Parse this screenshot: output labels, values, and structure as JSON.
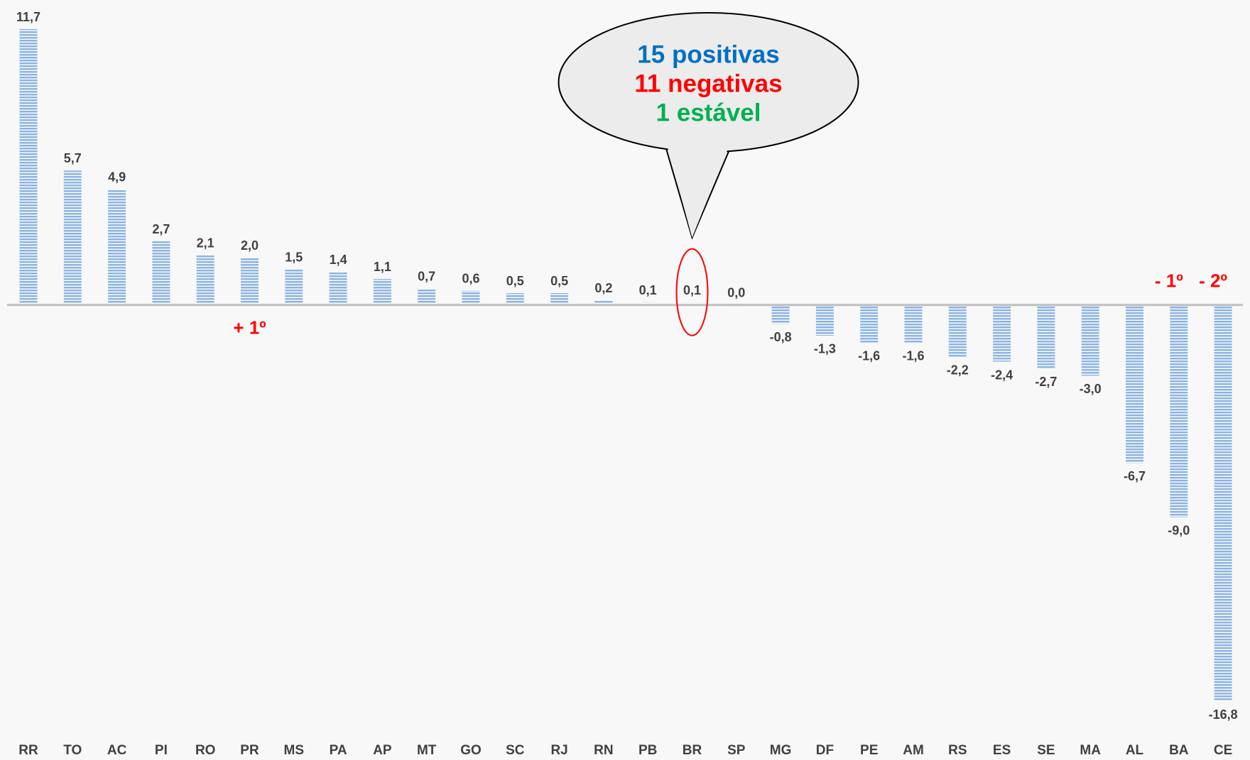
{
  "chart_data": {
    "type": "bar",
    "categories": [
      "RR",
      "TO",
      "AC",
      "PI",
      "RO",
      "PR",
      "MS",
      "PA",
      "AP",
      "MT",
      "GO",
      "SC",
      "RJ",
      "RN",
      "PB",
      "BR",
      "SP",
      "MG",
      "DF",
      "PE",
      "AM",
      "RS",
      "ES",
      "SE",
      "MA",
      "AL",
      "BA",
      "CE"
    ],
    "values": [
      11.7,
      5.7,
      4.9,
      2.7,
      2.1,
      2.0,
      1.5,
      1.4,
      1.1,
      0.7,
      0.6,
      0.5,
      0.5,
      0.2,
      0.1,
      0.1,
      0.0,
      -0.8,
      -1.3,
      -1.6,
      -1.6,
      -2.2,
      -2.4,
      -2.7,
      -3.0,
      -6.7,
      -9.0,
      -16.8
    ],
    "value_labels": [
      "11,7",
      "5,7",
      "4,9",
      "2,7",
      "2,1",
      "2,0",
      "1,5",
      "1,4",
      "1,1",
      "0,7",
      "0,6",
      "0,5",
      "0,5",
      "0,2",
      "0,1",
      "0,1",
      "0,0",
      "-0,8",
      "-1,3",
      "-1,6",
      "-1,6",
      "-2,2",
      "-2,4",
      "-2,7",
      "-3,0",
      "-6,7",
      "-9,0",
      "-16,8"
    ],
    "color": "#8db4e2",
    "callout": [
      {
        "text": "15 positivas",
        "color": "#0070c0"
      },
      {
        "text": "11 negativas",
        "color": "#ff0000"
      },
      {
        "text": "1 estável",
        "color": "#00b050"
      }
    ],
    "callout_category": "BR",
    "rank_labels": [
      {
        "text": "+ 1º",
        "category": "PR",
        "color": "#ff0000"
      },
      {
        "text": "- 1º",
        "category": "BA",
        "color": "#ff0000"
      },
      {
        "text": "- 2º",
        "category": "CE",
        "color": "#ff0000"
      }
    ]
  }
}
